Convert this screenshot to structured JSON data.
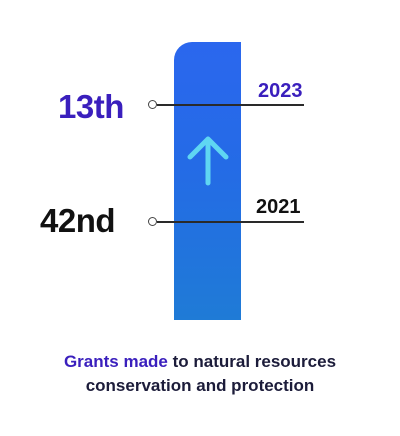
{
  "ranks": {
    "current": "13th",
    "previous": "42nd"
  },
  "years": {
    "current": "2023",
    "previous": "2021"
  },
  "caption": {
    "highlight": "Grants made",
    "rest": " to natural resources conservation and protection"
  },
  "colors": {
    "accent": "#3a1fbd",
    "bar": "#246be6",
    "arrow": "#5fd6f2",
    "text": "#111111"
  },
  "icons": {
    "trend": "up-arrow-icon"
  }
}
